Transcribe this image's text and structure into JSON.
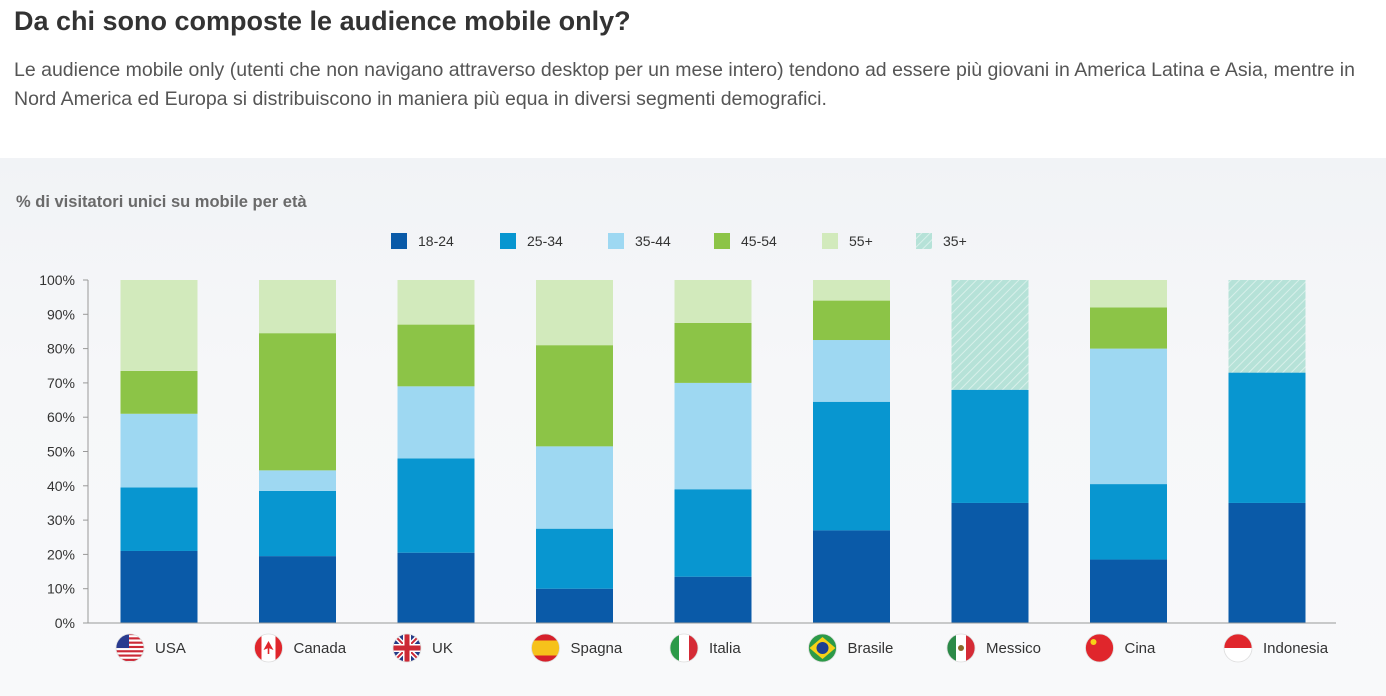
{
  "header": {
    "title": "Da chi sono composte le audience mobile only?",
    "subtitle": "Le audience mobile only (utenti che non navigano attraverso desktop per un mese intero) tendono ad essere più giovani in America Latina e Asia, mentre in Nord America ed Europa si distribuiscono in maniera più equa in diversi segmenti demografici."
  },
  "chart_data": {
    "type": "bar",
    "stacked": true,
    "title": "% di visitatori unici su mobile per età",
    "xlabel": "",
    "ylabel": "",
    "ylim": [
      0,
      100
    ],
    "yticks": [
      "0%",
      "10%",
      "20%",
      "30%",
      "40%",
      "50%",
      "60%",
      "70%",
      "80%",
      "90%",
      "100%"
    ],
    "grid": false,
    "legend_position": "top-center",
    "categories": [
      "USA",
      "Canada",
      "UK",
      "Spagna",
      "Italia",
      "Brasile",
      "Messico",
      "Cina",
      "Indonesia"
    ],
    "category_icons": [
      "flag-usa-icon",
      "flag-canada-icon",
      "flag-uk-icon",
      "flag-spain-icon",
      "flag-italy-icon",
      "flag-brazil-icon",
      "flag-mexico-icon",
      "flag-china-icon",
      "flag-indonesia-icon"
    ],
    "series": [
      {
        "name": "18-24",
        "color": "#0a5aa8",
        "values": [
          21,
          19.5,
          20.5,
          10,
          13.5,
          27,
          35,
          18.5,
          35
        ]
      },
      {
        "name": "25-34",
        "color": "#0896d0",
        "values": [
          18.5,
          19,
          27.5,
          17.5,
          25.5,
          37.5,
          33,
          22,
          38
        ]
      },
      {
        "name": "35-44",
        "color": "#9ed8f2",
        "values": [
          21.5,
          6,
          21,
          24,
          31,
          18,
          0,
          39.5,
          0
        ]
      },
      {
        "name": "45-54",
        "color": "#8cc447",
        "values": [
          12.5,
          40,
          18,
          29.5,
          17.5,
          11.5,
          0,
          12,
          0
        ]
      },
      {
        "name": "55+",
        "color": "#d2eabc",
        "values": [
          26.5,
          15.5,
          13,
          19,
          12.5,
          6,
          0,
          8,
          0
        ]
      },
      {
        "name": "35+",
        "color": "#b6e2d8",
        "pattern": "hatched",
        "values": [
          0,
          0,
          0,
          0,
          0,
          0,
          32,
          0,
          27
        ]
      }
    ]
  }
}
